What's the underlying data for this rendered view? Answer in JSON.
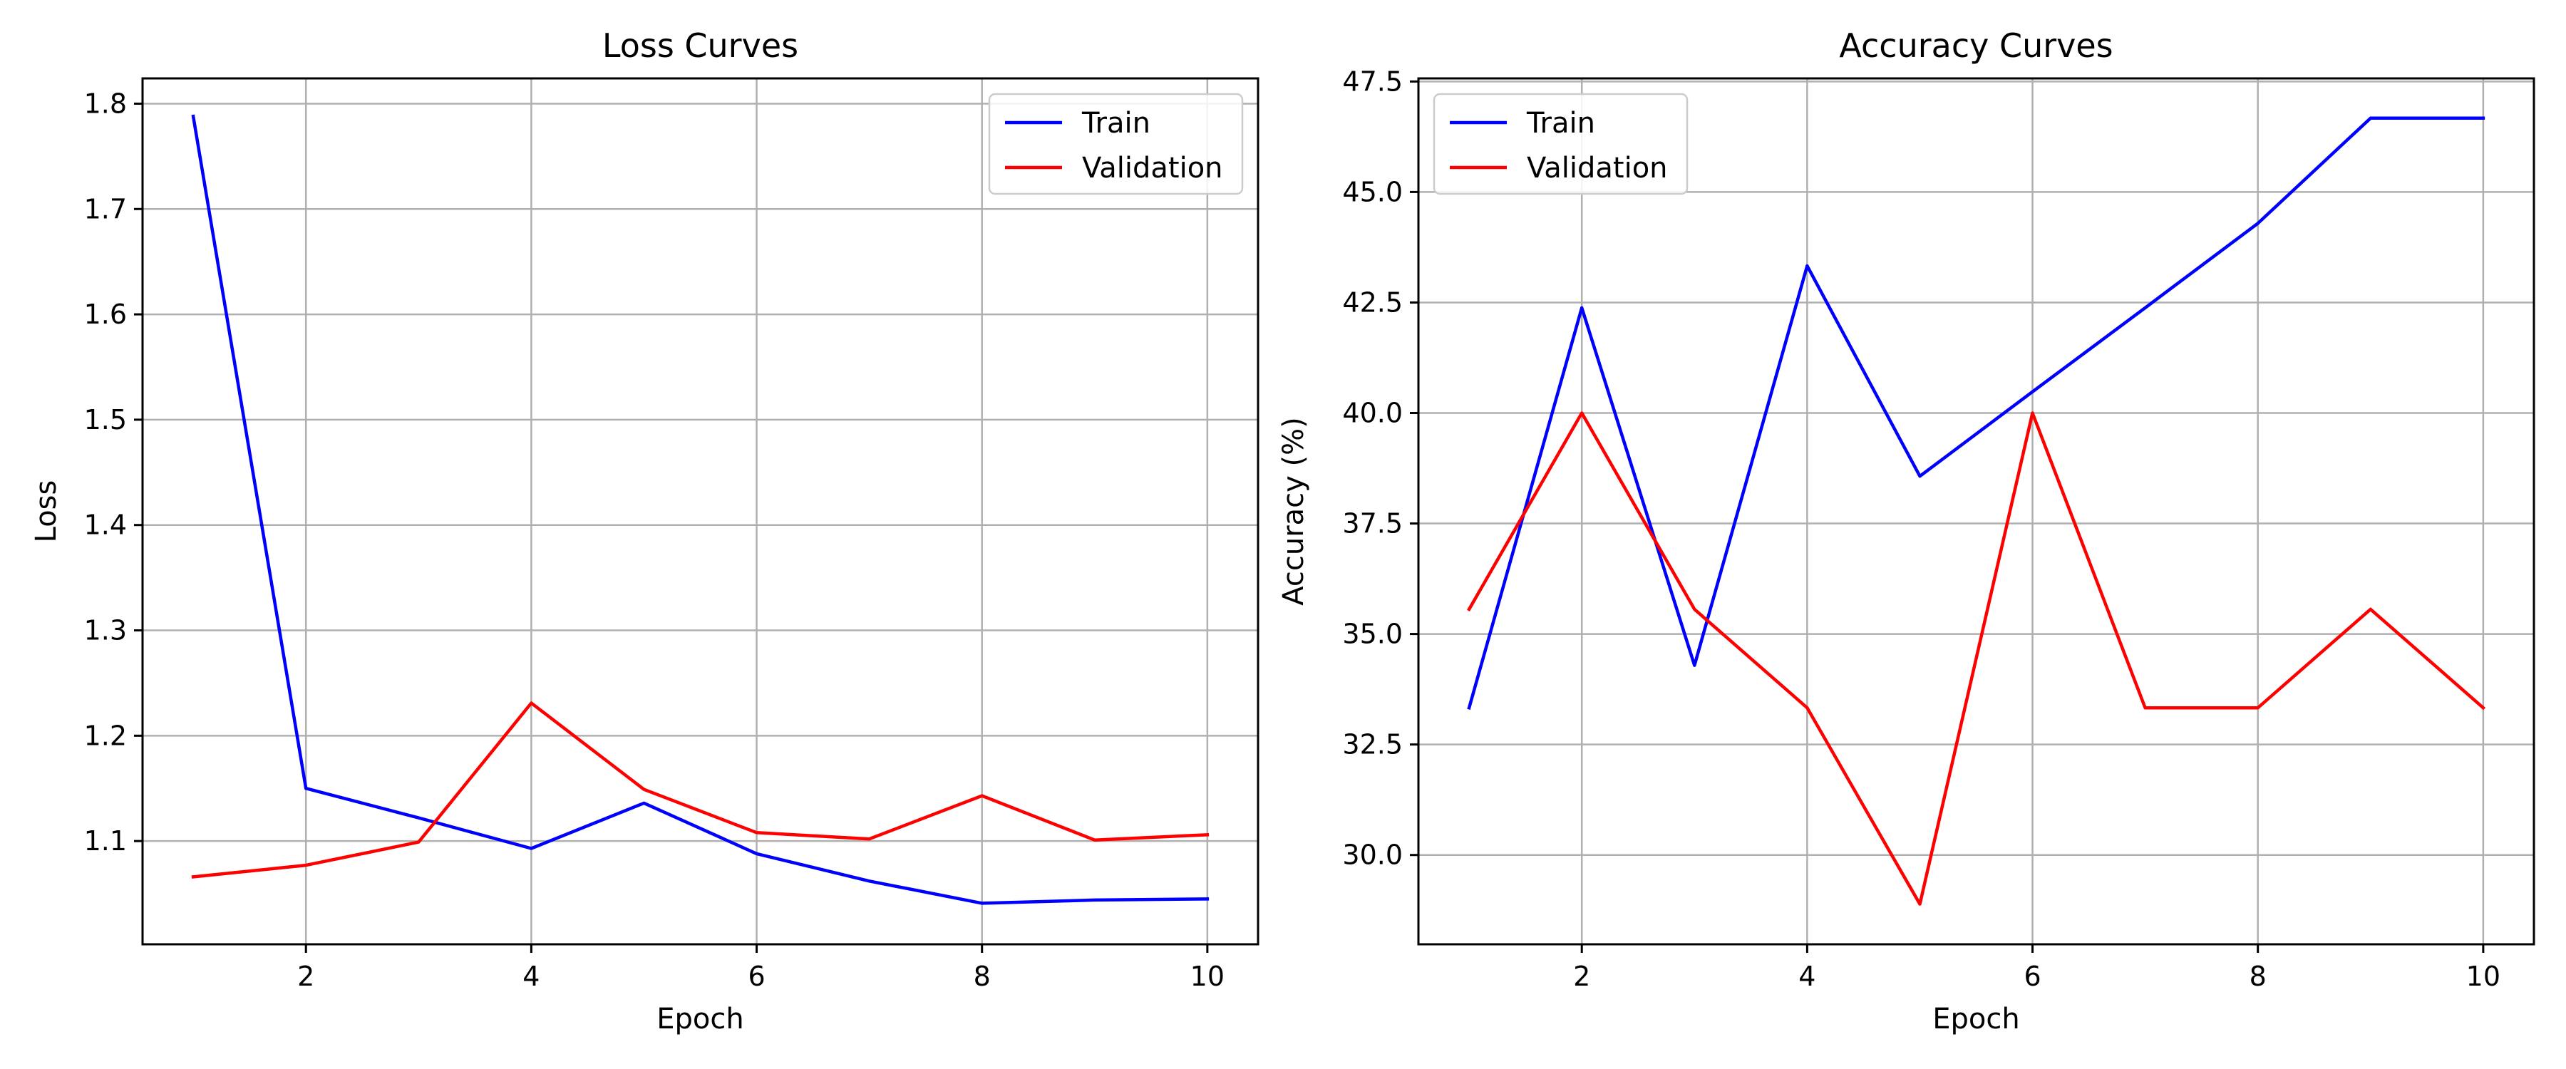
{
  "chart_data": [
    {
      "type": "line",
      "title": "Loss Curves",
      "xlabel": "Epoch",
      "ylabel": "Loss",
      "x": [
        1,
        2,
        3,
        4,
        5,
        6,
        7,
        8,
        9,
        10
      ],
      "xlim": [
        0.55,
        10.45
      ],
      "ylim": [
        1.002,
        1.824
      ],
      "xticks": [
        2,
        4,
        6,
        8,
        10
      ],
      "yticks": [
        1.1,
        1.2,
        1.3,
        1.4,
        1.5,
        1.6,
        1.7,
        1.8
      ],
      "grid": true,
      "legend_position": "top-right",
      "series": [
        {
          "name": "Train",
          "color": "#0000ff",
          "values": [
            1.788,
            1.15,
            1.122,
            1.093,
            1.136,
            1.088,
            1.062,
            1.041,
            1.044,
            1.045
          ]
        },
        {
          "name": "Validation",
          "color": "#ff0000",
          "values": [
            1.066,
            1.077,
            1.099,
            1.231,
            1.149,
            1.108,
            1.102,
            1.143,
            1.101,
            1.106
          ]
        }
      ]
    },
    {
      "type": "line",
      "title": "Accuracy Curves",
      "xlabel": "Epoch",
      "ylabel": "Accuracy (%)",
      "x": [
        1,
        2,
        3,
        4,
        5,
        6,
        7,
        8,
        9,
        10
      ],
      "xlim": [
        0.55,
        10.45
      ],
      "ylim": [
        27.98,
        47.57
      ],
      "xticks": [
        2,
        4,
        6,
        8,
        10
      ],
      "yticks": [
        30.0,
        32.5,
        35.0,
        37.5,
        40.0,
        42.5,
        45.0,
        47.5
      ],
      "grid": true,
      "legend_position": "top-left",
      "series": [
        {
          "name": "Train",
          "color": "#0000ff",
          "values": [
            33.33,
            42.38,
            34.29,
            43.33,
            38.57,
            40.48,
            42.38,
            44.29,
            46.67,
            46.67
          ]
        },
        {
          "name": "Validation",
          "color": "#ff0000",
          "values": [
            35.56,
            40.0,
            35.56,
            33.33,
            28.89,
            40.0,
            33.33,
            33.33,
            35.56,
            33.33
          ]
        }
      ]
    }
  ]
}
